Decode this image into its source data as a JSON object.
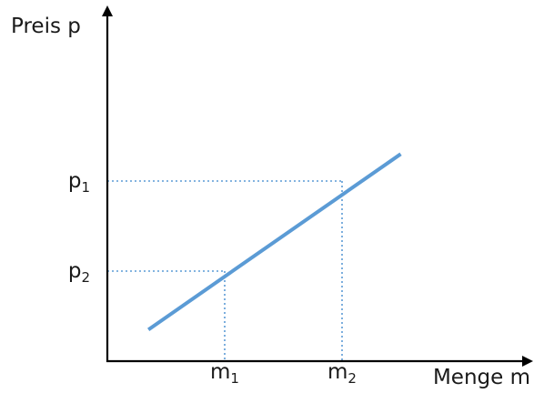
{
  "chart_data": {
    "type": "line",
    "title": "",
    "xlabel": "Menge m",
    "ylabel": "Preis p",
    "grid": false,
    "legend": "none",
    "line_color": "#5b9bd5",
    "guide_color": "#5b9bd5",
    "axis_color": "#000000",
    "series": [
      {
        "x": [
          0.35,
          2.5
        ],
        "y": [
          0.35,
          2.3
        ]
      }
    ],
    "ticks": {
      "x": [
        {
          "value": 1,
          "base": "m",
          "sub": "1"
        },
        {
          "value": 2,
          "base": "m",
          "sub": "2"
        }
      ],
      "y": [
        {
          "value": 2,
          "base": "p",
          "sub": "1"
        },
        {
          "value": 1,
          "base": "p",
          "sub": "2"
        }
      ]
    },
    "reference_points": [
      {
        "x": 1,
        "y": 1
      },
      {
        "x": 2,
        "y": 2
      }
    ],
    "xlim": [
      0,
      3.55
    ],
    "ylim": [
      0,
      3.0
    ]
  }
}
